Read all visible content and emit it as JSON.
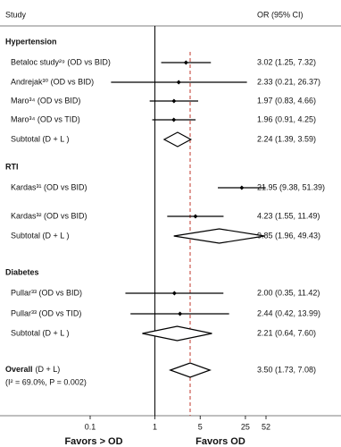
{
  "chart_data": {
    "type": "forest",
    "header": {
      "study": "Study",
      "effect": "OR (95% CI)"
    },
    "xlim": [
      0.1,
      52
    ],
    "xticks": [
      0.1,
      1,
      5,
      25,
      52
    ],
    "log_x": true,
    "reference": 1,
    "overall_line_color": "#c0392b",
    "x_labels": {
      "left": "Favors > OD",
      "right": "Favors OD"
    },
    "groups": [
      {
        "name": "Hypertension",
        "studies": [
          {
            "label": "Betaloc study²⁹ (OD vs BID)",
            "values": [
              3.02,
              1.25,
              7.32
            ],
            "value_label": "3.02 (1.25, 7.32)"
          },
          {
            "label": "Andrejak³⁰ (OD vs BID)",
            "values": [
              2.33,
              0.21,
              26.37
            ],
            "value_label": "2.33 (0.21, 26.37)"
          },
          {
            "label": "Maro³⁴ (OD vs BID)",
            "values": [
              1.97,
              0.83,
              4.66
            ],
            "value_label": "1.97 (0.83, 4.66)"
          },
          {
            "label": "Maro³⁴ (OD vs TID)",
            "values": [
              1.96,
              0.91,
              4.25
            ],
            "value_label": "1.96 (0.91, 4.25)"
          }
        ],
        "subtotal": {
          "label": "Subtotal (D + L )",
          "values": [
            2.24,
            1.39,
            3.59
          ],
          "value_label": "2.24 (1.39, 3.59)"
        }
      },
      {
        "name": "RTI",
        "studies": [
          {
            "label": "Kardas³¹ (OD vs BID)",
            "values": [
              21.95,
              9.38,
              51.39
            ],
            "value_label": "21.95 (9.38, 51.39)"
          },
          {
            "label": "Kardas³² (OD vs BID)",
            "values": [
              4.23,
              1.55,
              11.49
            ],
            "value_label": "4.23 (1.55, 11.49)"
          }
        ],
        "subtotal": {
          "label": "Subtotal (D + L )",
          "values": [
            9.85,
            1.96,
            49.43
          ],
          "value_label": "9.85 (1.96, 49.43)"
        }
      },
      {
        "name": "Diabetes",
        "studies": [
          {
            "label": "Pullar³³ (OD vs BID)",
            "values": [
              2.0,
              0.35,
              11.42
            ],
            "value_label": "2.00 (0.35, 11.42)"
          },
          {
            "label": "Pullar³³ (OD vs TID)",
            "values": [
              2.44,
              0.42,
              13.99
            ],
            "value_label": "2.44 (0.42, 13.99)"
          }
        ],
        "subtotal": {
          "label": "Subtotal (D + L )",
          "values": [
            2.21,
            0.64,
            7.6
          ],
          "value_label": "2.21 (0.64, 7.60)"
        }
      }
    ],
    "overall": {
      "label": "Overall",
      "method": "(D + L)",
      "stats": "(I² = 69.0%, P = 0.002)",
      "values": [
        3.5,
        1.73,
        7.08
      ],
      "value_label": "3.50 (1.73, 7.08)"
    }
  }
}
